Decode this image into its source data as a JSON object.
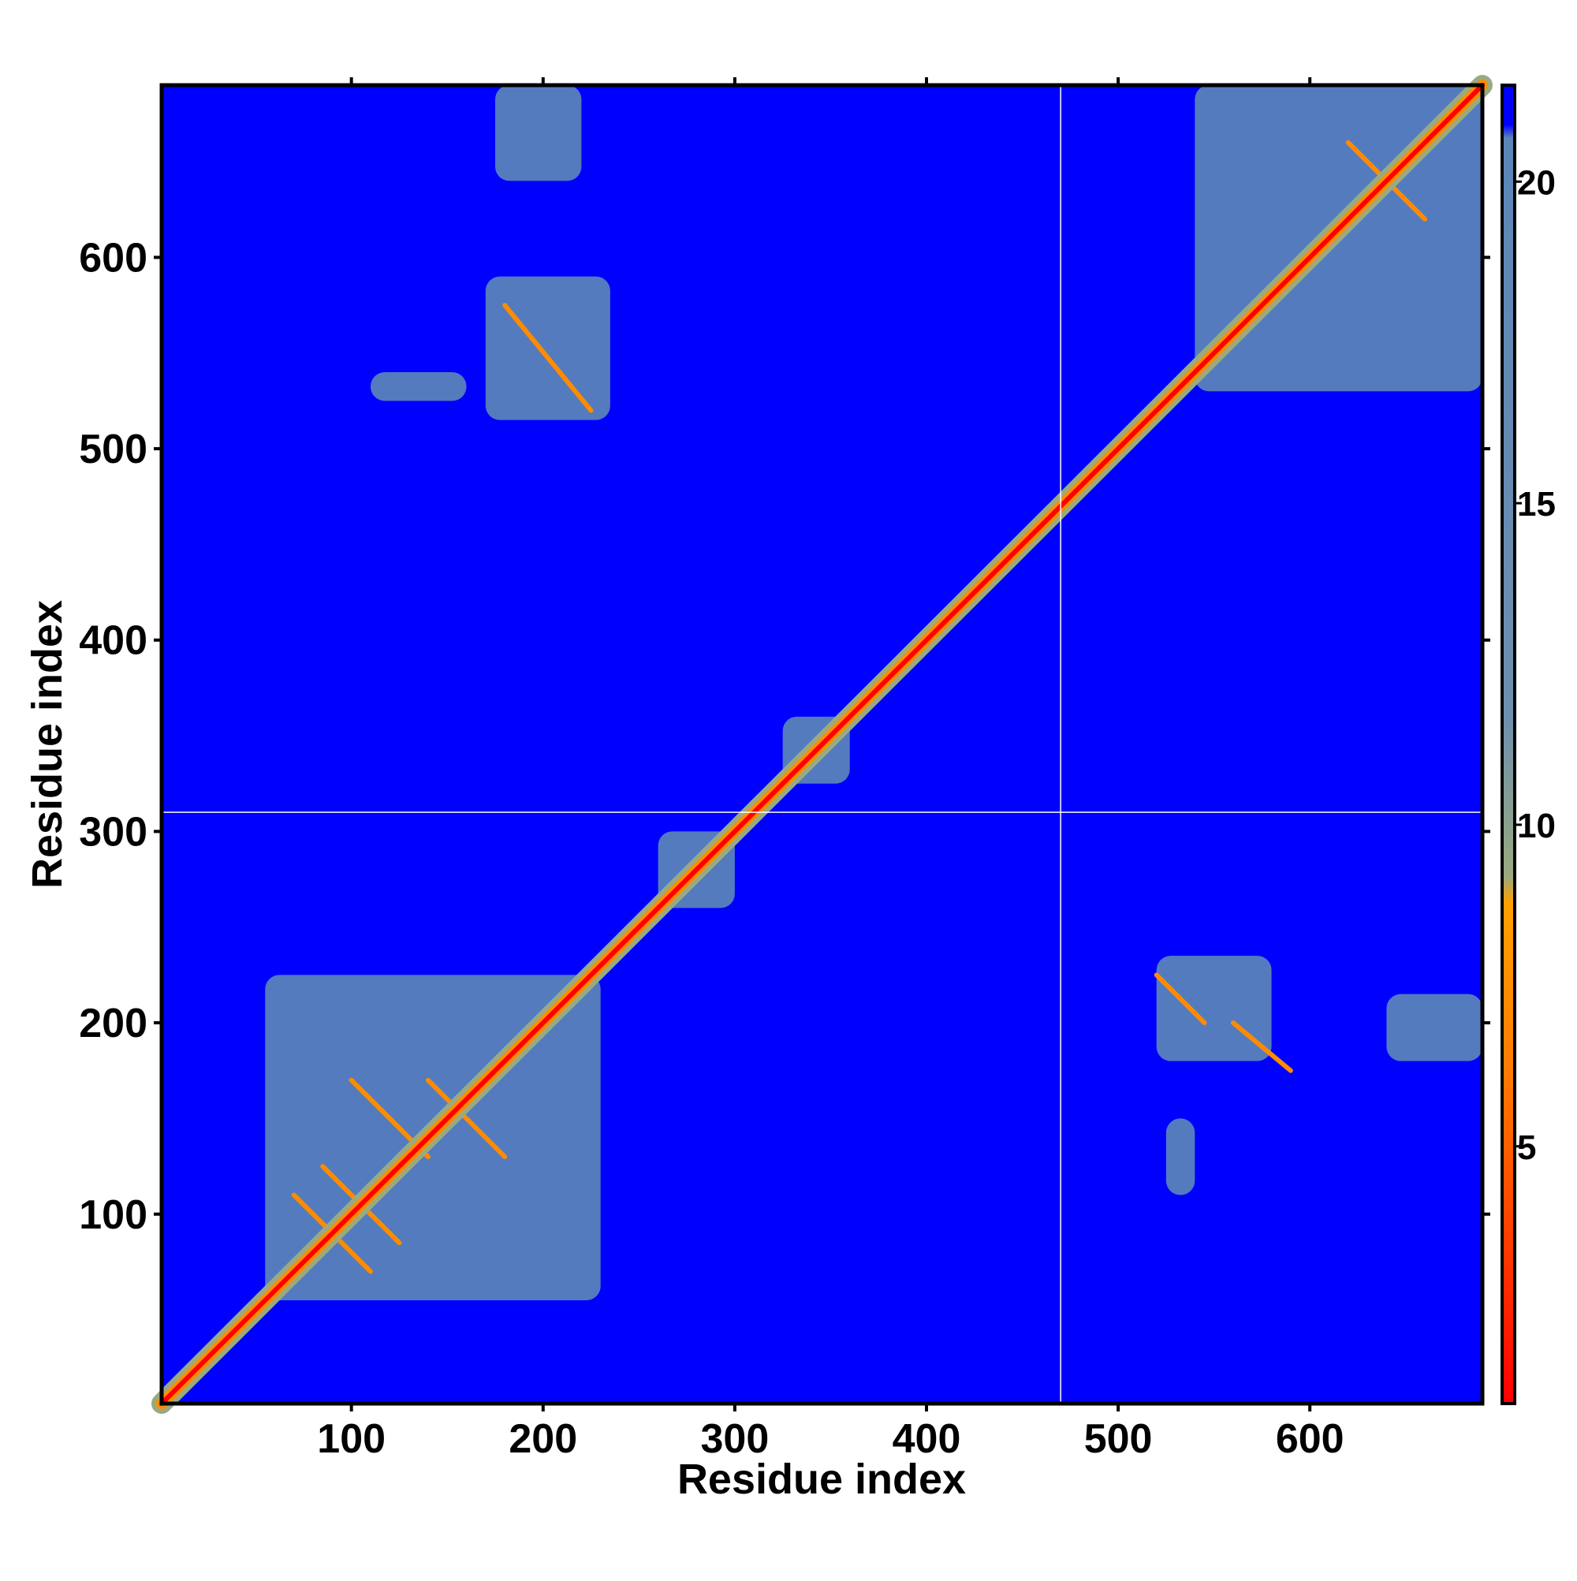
{
  "chart_data": {
    "type": "heatmap",
    "title": "",
    "xlabel": "Residue index",
    "ylabel": "Residue index",
    "xlim": [
      1,
      690
    ],
    "ylim": [
      1,
      690
    ],
    "x_ticks": [
      100,
      200,
      300,
      400,
      500,
      600
    ],
    "y_ticks": [
      100,
      200,
      300,
      400,
      500,
      600
    ],
    "domain_boundaries": {
      "x": 470,
      "y": 310
    },
    "colorbar": {
      "range": [
        1,
        21.5
      ],
      "ticks": [
        5,
        10,
        15,
        20
      ],
      "colors": {
        "near": "#ff0000",
        "mid": "#ff8c00",
        "transition": "#9aaa80",
        "far": "#5b86b8",
        "background": "#0000ff"
      }
    },
    "diagonal": {
      "from": [
        1,
        1
      ],
      "to": [
        690,
        690
      ]
    },
    "contact_regions": [
      {
        "x": [
          55,
          230
        ],
        "y": [
          55,
          225
        ],
        "level": "far"
      },
      {
        "x": [
          540,
          690
        ],
        "y": [
          530,
          690
        ],
        "level": "far"
      },
      {
        "x": [
          170,
          235
        ],
        "y": [
          515,
          590
        ],
        "level": "far"
      },
      {
        "x": [
          175,
          220
        ],
        "y": [
          640,
          690
        ],
        "level": "far"
      },
      {
        "x": [
          110,
          160
        ],
        "y": [
          525,
          540
        ],
        "level": "far"
      },
      {
        "x": [
          520,
          580
        ],
        "y": [
          180,
          235
        ],
        "level": "far"
      },
      {
        "x": [
          640,
          690
        ],
        "y": [
          180,
          215
        ],
        "level": "far"
      },
      {
        "x": [
          525,
          540
        ],
        "y": [
          110,
          150
        ],
        "level": "far"
      },
      {
        "x": [
          260,
          300
        ],
        "y": [
          260,
          300
        ],
        "level": "far"
      },
      {
        "x": [
          325,
          360
        ],
        "y": [
          325,
          360
        ],
        "level": "far"
      }
    ],
    "contact_lines": [
      {
        "x": [
          70,
          110
        ],
        "y": [
          110,
          70
        ]
      },
      {
        "x": [
          85,
          125
        ],
        "y": [
          125,
          85
        ]
      },
      {
        "x": [
          100,
          140
        ],
        "y": [
          170,
          130
        ]
      },
      {
        "x": [
          140,
          180
        ],
        "y": [
          170,
          130
        ]
      },
      {
        "x": [
          180,
          225
        ],
        "y": [
          575,
          520
        ]
      },
      {
        "x": [
          520,
          545
        ],
        "y": [
          225,
          200
        ]
      },
      {
        "x": [
          560,
          590
        ],
        "y": [
          200,
          175
        ]
      },
      {
        "x": [
          620,
          660
        ],
        "y": [
          660,
          620
        ]
      }
    ]
  }
}
